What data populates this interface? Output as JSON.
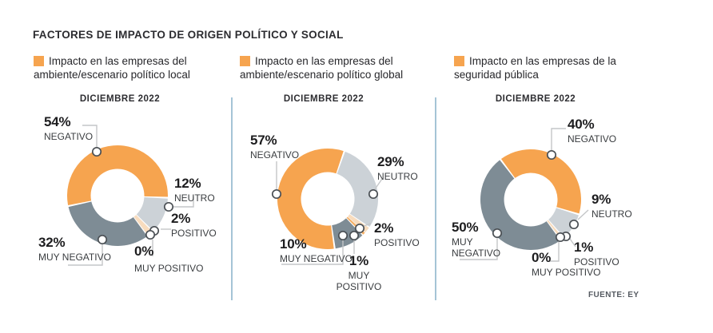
{
  "page": {
    "title": "FACTORES DE IMPACTO DE ORIGEN POLÍTICO Y SOCIAL",
    "source": "FUENTE: EY",
    "background": "#FFFFFF"
  },
  "colors": {
    "accent_orange": "#F6A44F",
    "neutro_gray": "#CCD2D7",
    "positivo_peach": "#F8DCBE",
    "muy_positivo_orange": "#F5AE62",
    "muy_negativo_slate": "#7E8C95",
    "marker_stroke": "#4A4F54",
    "leader_line": "#C4C6C8",
    "divider_blue": "#A5C4D6"
  },
  "chart_data": [
    {
      "type": "pie",
      "variant": "donut",
      "title": "DICIEMBRE 2022",
      "legend": "Impacto en las empresas del ambiente/escenario político local",
      "unit": "%",
      "categories": [
        "NEGATIVO",
        "NEUTRO",
        "POSITIVO",
        "MUY POSITIVO",
        "MUY NEGATIVO"
      ],
      "values": [
        54,
        12,
        2,
        0,
        32
      ],
      "segment_colors": [
        "#F6A44F",
        "#CCD2D7",
        "#F8DCBE",
        "#F5AE62",
        "#7E8C95"
      ],
      "labels": [
        {
          "value": "54%",
          "category": "NEGATIVO"
        },
        {
          "value": "12%",
          "category": "NEUTRO"
        },
        {
          "value": "2%",
          "category": "POSITIVO"
        },
        {
          "value": "0%",
          "category": "MUY POSITIVO"
        },
        {
          "value": "32%",
          "category": "MUY NEGATIVO"
        }
      ]
    },
    {
      "type": "pie",
      "variant": "donut",
      "title": "DICIEMBRE 2022",
      "legend": "Impacto en las empresas del ambiente/escenario político global",
      "unit": "%",
      "categories": [
        "NEGATIVO",
        "NEUTRO",
        "POSITIVO",
        "MUY POSITIVO",
        "MUY NEGATIVO"
      ],
      "values": [
        57,
        29,
        2,
        1,
        10
      ],
      "segment_colors": [
        "#F6A44F",
        "#CCD2D7",
        "#F8DCBE",
        "#F5AE62",
        "#7E8C95"
      ],
      "labels": [
        {
          "value": "57%",
          "category": "NEGATIVO"
        },
        {
          "value": "29%",
          "category": "NEUTRO"
        },
        {
          "value": "2%",
          "category": "POSITIVO"
        },
        {
          "value": "1%",
          "category": "MUY POSITIVO"
        },
        {
          "value": "10%",
          "category": "MUY NEGATIVO"
        }
      ]
    },
    {
      "type": "pie",
      "variant": "donut",
      "title": "DICIEMBRE 2022",
      "legend": "Impacto en las empresas de la seguridad pública",
      "unit": "%",
      "categories": [
        "NEGATIVO",
        "NEUTRO",
        "POSITIVO",
        "MUY POSITIVO",
        "MUY NEGATIVO"
      ],
      "values": [
        40,
        9,
        1,
        0,
        50
      ],
      "segment_colors": [
        "#F6A44F",
        "#CCD2D7",
        "#F8DCBE",
        "#F5AE62",
        "#7E8C95"
      ],
      "labels": [
        {
          "value": "40%",
          "category": "NEGATIVO"
        },
        {
          "value": "9%",
          "category": "NEUTRO"
        },
        {
          "value": "1%",
          "category": "POSITIVO"
        },
        {
          "value": "0%",
          "category": "MUY POSITIVO"
        },
        {
          "value": "50%",
          "category": "MUY NEGATIVO"
        }
      ]
    }
  ]
}
